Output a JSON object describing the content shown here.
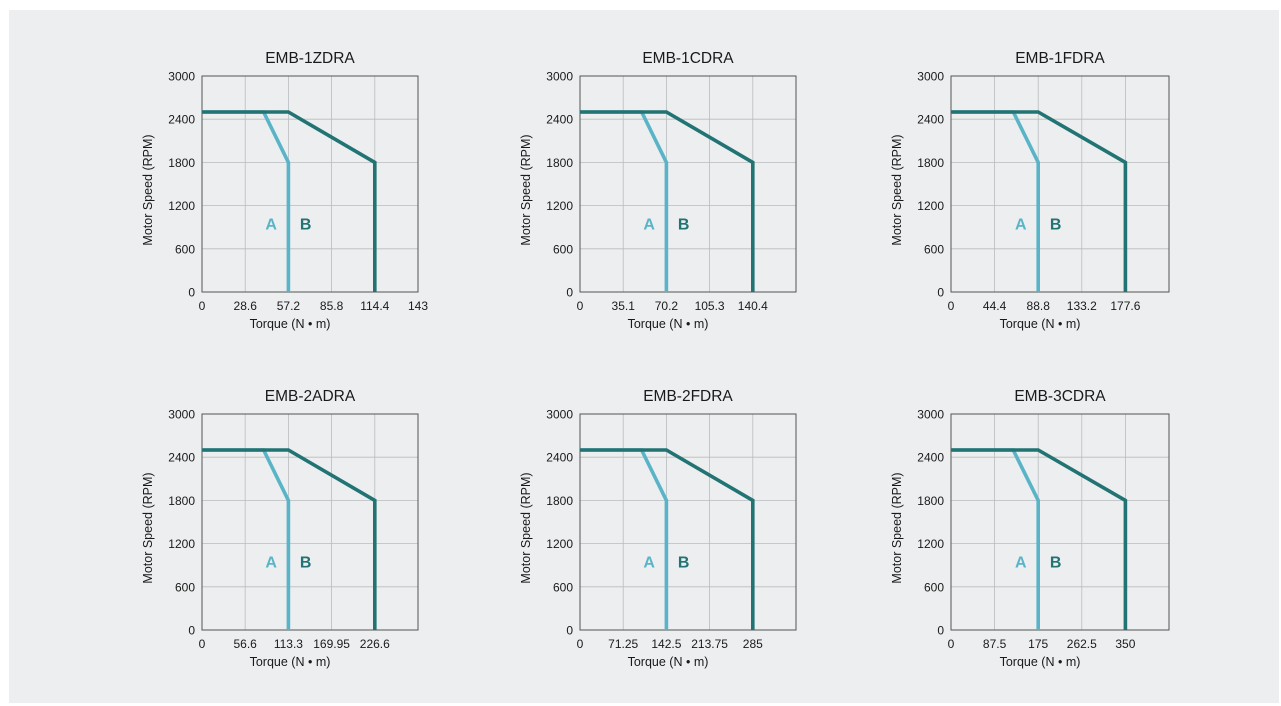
{
  "colors": {
    "A": "#5ab4c8",
    "B": "#227373",
    "grid": "#b9bcbe",
    "frame": "#555555",
    "background": "#eceeef"
  },
  "chart_data": [
    {
      "type": "line",
      "title": "EMB-1ZDRA",
      "xlabel": "Torque (N • m)",
      "ylabel": "Motor  Speed (RPM)",
      "xlim": [
        0,
        143
      ],
      "ylim": [
        0,
        3000
      ],
      "xticks": [
        0,
        28.6,
        57.2,
        85.8,
        114.4,
        143
      ],
      "xtick_labels": [
        "0",
        "28.6",
        "57.2",
        "85.8",
        "114.4",
        "143"
      ],
      "yticks": [
        0,
        600,
        1200,
        1800,
        2400,
        3000
      ],
      "ytick_labels": [
        "0",
        "600",
        "1200",
        "1800",
        "2400",
        "3000"
      ],
      "grid": true,
      "series": [
        {
          "name": "A",
          "x": [
            0,
            40.8,
            57.2,
            57.2
          ],
          "y": [
            2500,
            2500,
            1800,
            0
          ]
        },
        {
          "name": "B",
          "x": [
            0,
            57.2,
            114.4,
            114.4
          ],
          "y": [
            2500,
            2500,
            1800,
            0
          ]
        }
      ]
    },
    {
      "type": "line",
      "title": "EMB-1CDRA",
      "xlabel": "Torque (N • m)",
      "ylabel": "Motor  Speed (RPM)",
      "xlim": [
        0,
        175.5
      ],
      "ylim": [
        0,
        3000
      ],
      "xticks": [
        0,
        35.1,
        70.2,
        105.3,
        140.4
      ],
      "xtick_labels": [
        "0",
        "35.1",
        "70.2",
        "105.3",
        "140.4"
      ],
      "yticks": [
        0,
        600,
        1200,
        1800,
        2400,
        3000
      ],
      "ytick_labels": [
        "0",
        "600",
        "1200",
        "1800",
        "2400",
        "3000"
      ],
      "grid": true,
      "series": [
        {
          "name": "A",
          "x": [
            0,
            50.1,
            70.2,
            70.2
          ],
          "y": [
            2500,
            2500,
            1800,
            0
          ]
        },
        {
          "name": "B",
          "x": [
            0,
            70.2,
            140.4,
            140.4
          ],
          "y": [
            2500,
            2500,
            1800,
            0
          ]
        }
      ]
    },
    {
      "type": "line",
      "title": "EMB-1FDRA",
      "xlabel": "Torque (N • m)",
      "ylabel": "Motor  Speed (RPM)",
      "xlim": [
        0,
        222
      ],
      "ylim": [
        0,
        3000
      ],
      "xticks": [
        0,
        44.4,
        88.8,
        133.2,
        177.6
      ],
      "xtick_labels": [
        "0",
        "44.4",
        "88.8",
        "133.2",
        "177.6"
      ],
      "yticks": [
        0,
        600,
        1200,
        1800,
        2400,
        3000
      ],
      "ytick_labels": [
        "0",
        "600",
        "1200",
        "1800",
        "2400",
        "3000"
      ],
      "grid": true,
      "series": [
        {
          "name": "A",
          "x": [
            0,
            63.4,
            88.8,
            88.8
          ],
          "y": [
            2500,
            2500,
            1800,
            0
          ]
        },
        {
          "name": "B",
          "x": [
            0,
            88.8,
            177.6,
            177.6
          ],
          "y": [
            2500,
            2500,
            1800,
            0
          ]
        }
      ]
    },
    {
      "type": "line",
      "title": "EMB-2ADRA",
      "xlabel": "Torque (N • m)",
      "ylabel": "Motor  Speed (RPM)",
      "xlim": [
        0,
        283.25
      ],
      "ylim": [
        0,
        3000
      ],
      "xticks": [
        0,
        56.6,
        113.3,
        169.95,
        226.6
      ],
      "xtick_labels": [
        "0",
        "56.6",
        "113.3",
        "169.95",
        "226.6"
      ],
      "yticks": [
        0,
        600,
        1200,
        1800,
        2400,
        3000
      ],
      "ytick_labels": [
        "0",
        "600",
        "1200",
        "1800",
        "2400",
        "3000"
      ],
      "grid": true,
      "series": [
        {
          "name": "A",
          "x": [
            0,
            80.8,
            113.3,
            113.3
          ],
          "y": [
            2500,
            2500,
            1800,
            0
          ]
        },
        {
          "name": "B",
          "x": [
            0,
            113.3,
            226.6,
            226.6
          ],
          "y": [
            2500,
            2500,
            1800,
            0
          ]
        }
      ]
    },
    {
      "type": "line",
      "title": "EMB-2FDRA",
      "xlabel": "Torque (N • m)",
      "ylabel": "Motor  Speed (RPM)",
      "xlim": [
        0,
        356.25
      ],
      "ylim": [
        0,
        3000
      ],
      "xticks": [
        0,
        71.25,
        142.5,
        213.75,
        285
      ],
      "xtick_labels": [
        "0",
        "71.25",
        "142.5",
        "213.75",
        "285"
      ],
      "yticks": [
        0,
        600,
        1200,
        1800,
        2400,
        3000
      ],
      "ytick_labels": [
        "0",
        "600",
        "1200",
        "1800",
        "2400",
        "3000"
      ],
      "grid": true,
      "series": [
        {
          "name": "A",
          "x": [
            0,
            101.6,
            142.5,
            142.5
          ],
          "y": [
            2500,
            2500,
            1800,
            0
          ]
        },
        {
          "name": "B",
          "x": [
            0,
            142.5,
            285,
            285
          ],
          "y": [
            2500,
            2500,
            1800,
            0
          ]
        }
      ]
    },
    {
      "type": "line",
      "title": "EMB-3CDRA",
      "xlabel": "Torque (N • m)",
      "ylabel": "Motor  Speed (RPM)",
      "xlim": [
        0,
        437.5
      ],
      "ylim": [
        0,
        3000
      ],
      "xticks": [
        0,
        87.5,
        175,
        262.5,
        350
      ],
      "xtick_labels": [
        "0",
        "87.5",
        "175",
        "262.5",
        "350"
      ],
      "yticks": [
        0,
        600,
        1200,
        1800,
        2400,
        3000
      ],
      "ytick_labels": [
        "0",
        "600",
        "1200",
        "1800",
        "2400",
        "3000"
      ],
      "grid": true,
      "series": [
        {
          "name": "A",
          "x": [
            0,
            124.8,
            175,
            175
          ],
          "y": [
            2500,
            2500,
            1800,
            0
          ]
        },
        {
          "name": "B",
          "x": [
            0,
            175,
            350,
            350
          ],
          "y": [
            2500,
            2500,
            1800,
            0
          ]
        }
      ]
    }
  ]
}
